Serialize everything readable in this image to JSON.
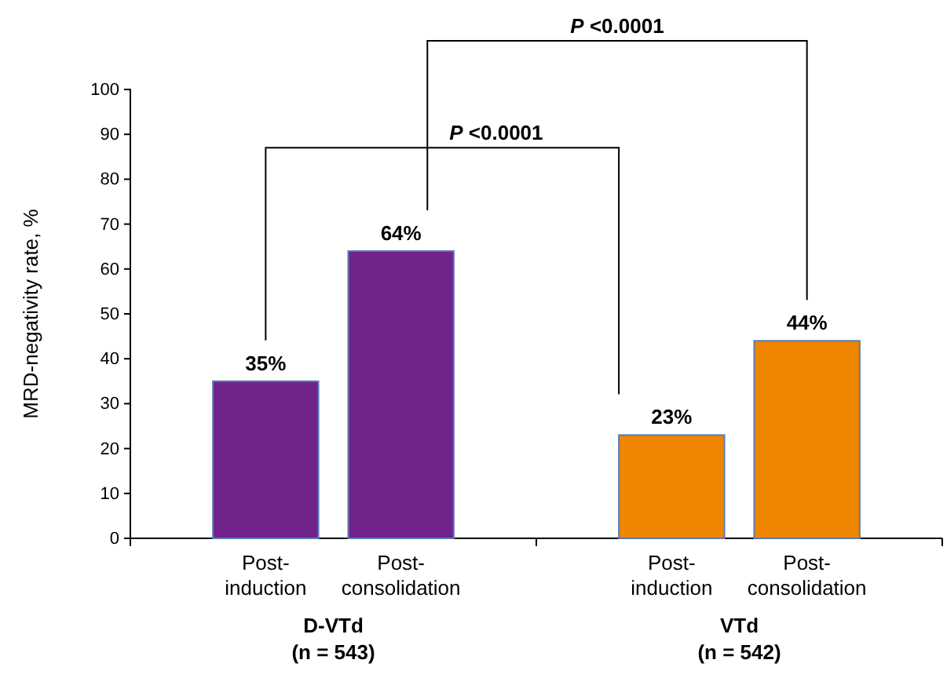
{
  "chart_data": {
    "type": "bar",
    "ylabel": "MRD-negativity rate, %",
    "categories": [
      "Post-induction",
      "Post-consolidation",
      "Post-induction",
      "Post-consolidation"
    ],
    "series": [
      {
        "color": "#71238c",
        "values": [
          35,
          64,
          null,
          null
        ],
        "value_labels": [
          "35%",
          "64%",
          null,
          null
        ]
      },
      {
        "color": "#ef8500",
        "values": [
          null,
          null,
          23,
          44
        ],
        "value_labels": [
          null,
          null,
          "23%",
          "44%"
        ]
      }
    ],
    "ylim": [
      0,
      100
    ],
    "yticks": [
      0,
      10,
      20,
      30,
      40,
      50,
      60,
      70,
      80,
      90,
      100
    ],
    "annotations": [
      "D-VTd\n(n = 543)",
      "VTd\n(n = 542)",
      "P <0.0001",
      "P <0.0001"
    ]
  }
}
